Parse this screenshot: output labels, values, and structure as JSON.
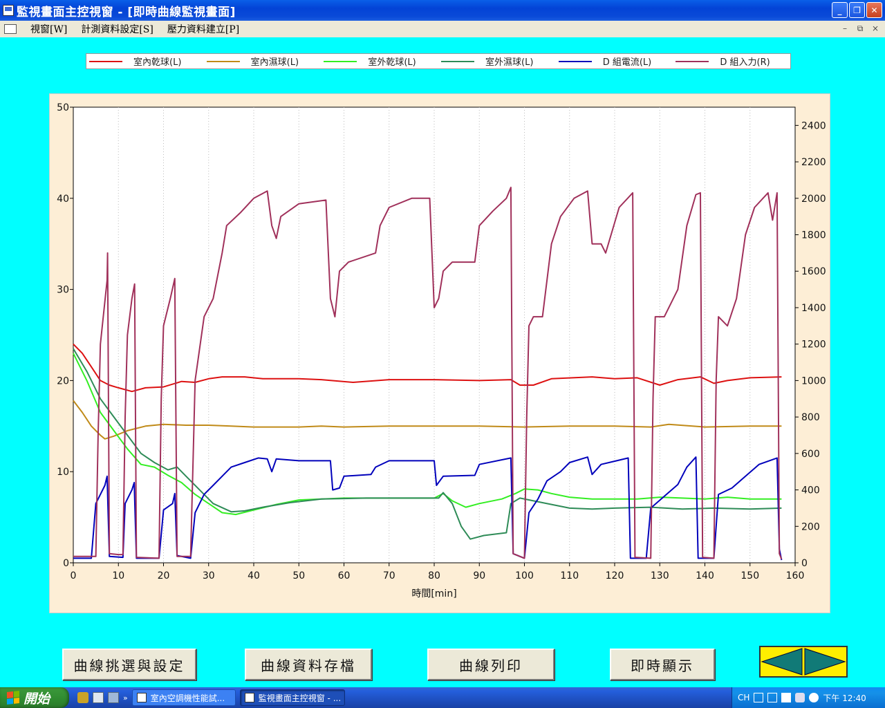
{
  "window": {
    "title": "監視畫面主控視窗 - [即時曲線監視畫面]",
    "buttons": [
      "minimize-icon",
      "restore-icon",
      "close-icon"
    ]
  },
  "menubar": {
    "items": [
      "視窗[W]",
      "計測資料設定[S]",
      "壓力資料建立[P]"
    ],
    "mdi_buttons": [
      "–",
      "⧉",
      "×"
    ]
  },
  "legend": {
    "items": [
      {
        "label": "室內乾球(L)",
        "color": "#dd1111"
      },
      {
        "label": "室內濕球(L)",
        "color": "#c08a18"
      },
      {
        "label": "室外乾球(L)",
        "color": "#33ee22"
      },
      {
        "label": "室外濕球(L)",
        "color": "#2e8b57"
      },
      {
        "label": "D 組電流(L)",
        "color": "#0000bb"
      },
      {
        "label": "D 組入力(R)",
        "color": "#a0305a"
      }
    ]
  },
  "chart_data": {
    "type": "line",
    "xlabel": "時間[min]",
    "xlim": [
      0,
      160
    ],
    "ylim": [
      0,
      50
    ],
    "y2lim": [
      0,
      2500
    ],
    "x_ticks": [
      0,
      10,
      20,
      30,
      40,
      50,
      60,
      70,
      80,
      90,
      100,
      110,
      120,
      130,
      140,
      150,
      160
    ],
    "y_ticks": [
      0,
      10,
      20,
      30,
      40,
      50
    ],
    "y2_ticks": [
      0,
      200,
      400,
      600,
      800,
      1000,
      1200,
      1400,
      1600,
      1800,
      2000,
      2200,
      2400
    ],
    "grid": true,
    "series": [
      {
        "name": "室內乾球(L)",
        "color": "#dd1111",
        "axis": "left",
        "points": [
          [
            0,
            24
          ],
          [
            2,
            23
          ],
          [
            4,
            21.5
          ],
          [
            6,
            20
          ],
          [
            8,
            19.5
          ],
          [
            10,
            19.2
          ],
          [
            13,
            18.8
          ],
          [
            16,
            19.2
          ],
          [
            20,
            19.3
          ],
          [
            24,
            19.9
          ],
          [
            27,
            19.8
          ],
          [
            30,
            20.2
          ],
          [
            33,
            20.4
          ],
          [
            38,
            20.4
          ],
          [
            42,
            20.2
          ],
          [
            50,
            20.2
          ],
          [
            55,
            20.1
          ],
          [
            62,
            19.8
          ],
          [
            70,
            20.1
          ],
          [
            80,
            20.1
          ],
          [
            90,
            20
          ],
          [
            97,
            20.1
          ],
          [
            99,
            19.5
          ],
          [
            102,
            19.5
          ],
          [
            106,
            20.2
          ],
          [
            115,
            20.4
          ],
          [
            120,
            20.2
          ],
          [
            125,
            20.3
          ],
          [
            130,
            19.5
          ],
          [
            134,
            20.1
          ],
          [
            139,
            20.4
          ],
          [
            142,
            19.7
          ],
          [
            145,
            20
          ],
          [
            150,
            20.3
          ],
          [
            157,
            20.4
          ]
        ]
      },
      {
        "name": "室內濕球(L)",
        "color": "#c08a18",
        "axis": "left",
        "points": [
          [
            0,
            17.8
          ],
          [
            2,
            16.5
          ],
          [
            4,
            15
          ],
          [
            6,
            14
          ],
          [
            7,
            13.6
          ],
          [
            9,
            13.9
          ],
          [
            12,
            14.5
          ],
          [
            16,
            15
          ],
          [
            20,
            15.2
          ],
          [
            25,
            15.1
          ],
          [
            30,
            15.1
          ],
          [
            35,
            15
          ],
          [
            40,
            14.9
          ],
          [
            50,
            14.9
          ],
          [
            55,
            15
          ],
          [
            60,
            14.9
          ],
          [
            70,
            15
          ],
          [
            80,
            15
          ],
          [
            90,
            15
          ],
          [
            100,
            14.9
          ],
          [
            110,
            15
          ],
          [
            120,
            15
          ],
          [
            128,
            14.9
          ],
          [
            132,
            15.2
          ],
          [
            140,
            14.9
          ],
          [
            150,
            15
          ],
          [
            157,
            15
          ]
        ]
      },
      {
        "name": "室外乾球(L)",
        "color": "#33ee22",
        "axis": "left",
        "points": [
          [
            0,
            23
          ],
          [
            3,
            20
          ],
          [
            6,
            16.5
          ],
          [
            9,
            14.5
          ],
          [
            12,
            12.5
          ],
          [
            15,
            10.8
          ],
          [
            18,
            10.5
          ],
          [
            21,
            9.6
          ],
          [
            24,
            8.8
          ],
          [
            27,
            7.5
          ],
          [
            30,
            6.5
          ],
          [
            33,
            5.5
          ],
          [
            36,
            5.3
          ],
          [
            40,
            5.8
          ],
          [
            45,
            6.4
          ],
          [
            50,
            6.9
          ],
          [
            55,
            7
          ],
          [
            60,
            7.1
          ],
          [
            70,
            7.1
          ],
          [
            80,
            7.1
          ],
          [
            82,
            7.6
          ],
          [
            84,
            6.8
          ],
          [
            87,
            6.1
          ],
          [
            90,
            6.5
          ],
          [
            95,
            7
          ],
          [
            98,
            7.6
          ],
          [
            100,
            8.1
          ],
          [
            103,
            8
          ],
          [
            106,
            7.6
          ],
          [
            110,
            7.2
          ],
          [
            115,
            7
          ],
          [
            120,
            7
          ],
          [
            125,
            7
          ],
          [
            130,
            7.2
          ],
          [
            135,
            7.1
          ],
          [
            140,
            7
          ],
          [
            145,
            7.2
          ],
          [
            150,
            7
          ],
          [
            157,
            7
          ]
        ]
      },
      {
        "name": "室外濕球(L)",
        "color": "#2e8b57",
        "axis": "left",
        "points": [
          [
            0,
            23.5
          ],
          [
            3,
            21
          ],
          [
            6,
            18
          ],
          [
            9,
            16
          ],
          [
            12,
            14
          ],
          [
            15,
            12
          ],
          [
            18,
            11
          ],
          [
            21,
            10.2
          ],
          [
            23,
            10.5
          ],
          [
            25,
            9.5
          ],
          [
            28,
            8
          ],
          [
            31,
            6.5
          ],
          [
            35,
            5.6
          ],
          [
            38,
            5.7
          ],
          [
            42,
            6.1
          ],
          [
            48,
            6.6
          ],
          [
            55,
            7
          ],
          [
            65,
            7.1
          ],
          [
            75,
            7.1
          ],
          [
            81,
            7.1
          ],
          [
            82,
            7.7
          ],
          [
            84,
            6.5
          ],
          [
            86,
            4
          ],
          [
            88,
            2.6
          ],
          [
            91,
            3
          ],
          [
            96,
            3.3
          ],
          [
            97,
            6.5
          ],
          [
            99,
            7.1
          ],
          [
            104,
            6.6
          ],
          [
            110,
            6
          ],
          [
            115,
            5.9
          ],
          [
            120,
            6
          ],
          [
            128,
            6.1
          ],
          [
            135,
            5.9
          ],
          [
            142,
            6
          ],
          [
            150,
            5.9
          ],
          [
            157,
            6
          ]
        ]
      },
      {
        "name": "D 組電流(L)",
        "color": "#0000bb",
        "axis": "left",
        "points": [
          [
            0,
            0.5
          ],
          [
            4,
            0.5
          ],
          [
            5,
            6.5
          ],
          [
            7,
            8.5
          ],
          [
            7.5,
            9.5
          ],
          [
            8,
            0.7
          ],
          [
            11,
            0.6
          ],
          [
            11.5,
            6.5
          ],
          [
            13,
            8
          ],
          [
            13.5,
            8.8
          ],
          [
            14,
            0.5
          ],
          [
            19,
            0.5
          ],
          [
            20,
            5.8
          ],
          [
            22,
            6.5
          ],
          [
            22.5,
            7.6
          ],
          [
            23,
            0.8
          ],
          [
            26,
            0.5
          ],
          [
            27,
            5.5
          ],
          [
            29,
            7.5
          ],
          [
            31,
            8.5
          ],
          [
            33,
            9.5
          ],
          [
            35,
            10.5
          ],
          [
            38,
            11
          ],
          [
            41,
            11.5
          ],
          [
            43,
            11.4
          ],
          [
            44,
            10
          ],
          [
            45,
            11.4
          ],
          [
            50,
            11.2
          ],
          [
            57,
            11.2
          ],
          [
            57.5,
            8
          ],
          [
            59,
            8.2
          ],
          [
            60,
            9.5
          ],
          [
            66,
            9.7
          ],
          [
            67,
            10.5
          ],
          [
            70,
            11.2
          ],
          [
            80,
            11.2
          ],
          [
            80.5,
            8.5
          ],
          [
            82,
            9.5
          ],
          [
            89,
            9.6
          ],
          [
            90,
            10.8
          ],
          [
            97,
            11.5
          ],
          [
            97.5,
            1
          ],
          [
            100,
            0.5
          ],
          [
            101,
            5.5
          ],
          [
            103,
            7
          ],
          [
            105,
            9
          ],
          [
            108,
            10
          ],
          [
            110,
            11
          ],
          [
            114,
            11.6
          ],
          [
            115,
            9.7
          ],
          [
            117,
            10.8
          ],
          [
            123,
            11.5
          ],
          [
            123.5,
            0.5
          ],
          [
            127,
            0.5
          ],
          [
            128,
            6
          ],
          [
            131,
            7.3
          ],
          [
            134,
            8.6
          ],
          [
            136,
            10.5
          ],
          [
            138,
            11.6
          ],
          [
            138.5,
            0.5
          ],
          [
            142,
            0.5
          ],
          [
            143,
            7.5
          ],
          [
            146,
            8.2
          ],
          [
            149,
            9.5
          ],
          [
            152,
            10.8
          ],
          [
            156,
            11.5
          ],
          [
            156.5,
            1.5
          ],
          [
            157,
            0.3
          ]
        ]
      },
      {
        "name": "D 組入力(R)",
        "color": "#a0305a",
        "axis": "right",
        "points": [
          [
            0,
            35
          ],
          [
            5,
            35
          ],
          [
            5.5,
            700
          ],
          [
            6,
            1200
          ],
          [
            7.5,
            1550
          ],
          [
            7.6,
            1700
          ],
          [
            8,
            50
          ],
          [
            10,
            45
          ],
          [
            11,
            45
          ],
          [
            11.5,
            800
          ],
          [
            12,
            1250
          ],
          [
            13,
            1450
          ],
          [
            13.6,
            1530
          ],
          [
            14,
            30
          ],
          [
            19,
            25
          ],
          [
            19.5,
            900
          ],
          [
            20,
            1300
          ],
          [
            21.5,
            1450
          ],
          [
            22.5,
            1560
          ],
          [
            23,
            35
          ],
          [
            26,
            35
          ],
          [
            27,
            1000
          ],
          [
            29,
            1350
          ],
          [
            31,
            1450
          ],
          [
            33,
            1700
          ],
          [
            34,
            1850
          ],
          [
            37,
            1920
          ],
          [
            40,
            2000
          ],
          [
            43,
            2040
          ],
          [
            44,
            1850
          ],
          [
            45,
            1780
          ],
          [
            46,
            1900
          ],
          [
            50,
            1970
          ],
          [
            56,
            1990
          ],
          [
            57,
            1450
          ],
          [
            58,
            1350
          ],
          [
            59,
            1600
          ],
          [
            61,
            1650
          ],
          [
            67,
            1700
          ],
          [
            68,
            1850
          ],
          [
            70,
            1950
          ],
          [
            75,
            2000
          ],
          [
            79,
            2000
          ],
          [
            80,
            1400
          ],
          [
            81,
            1450
          ],
          [
            82,
            1600
          ],
          [
            84,
            1650
          ],
          [
            89,
            1650
          ],
          [
            90,
            1850
          ],
          [
            93,
            1930
          ],
          [
            96,
            2000
          ],
          [
            97,
            2060
          ],
          [
            97.5,
            50
          ],
          [
            100,
            25
          ],
          [
            100.5,
            800
          ],
          [
            101,
            1300
          ],
          [
            102,
            1350
          ],
          [
            104,
            1350
          ],
          [
            106,
            1750
          ],
          [
            108,
            1900
          ],
          [
            111,
            2000
          ],
          [
            114,
            2040
          ],
          [
            115,
            1750
          ],
          [
            117,
            1750
          ],
          [
            118,
            1700
          ],
          [
            121,
            1950
          ],
          [
            124,
            2030
          ],
          [
            124.5,
            30
          ],
          [
            128,
            25
          ],
          [
            128.5,
            900
          ],
          [
            129,
            1350
          ],
          [
            131,
            1350
          ],
          [
            134,
            1500
          ],
          [
            136,
            1850
          ],
          [
            138,
            2020
          ],
          [
            139,
            2030
          ],
          [
            139.5,
            30
          ],
          [
            142,
            25
          ],
          [
            142.5,
            1000
          ],
          [
            143,
            1350
          ],
          [
            145,
            1300
          ],
          [
            147,
            1450
          ],
          [
            149,
            1800
          ],
          [
            151,
            1950
          ],
          [
            154,
            2030
          ],
          [
            155,
            1880
          ],
          [
            156,
            2030
          ],
          [
            156.5,
            50
          ],
          [
            157,
            20
          ]
        ]
      }
    ]
  },
  "buttons": {
    "curve_select": "曲線挑選與設定",
    "curve_save": "曲線資料存檔",
    "curve_print": "曲線列印",
    "realtime": "即時顯示"
  },
  "nav": {
    "prev_icon": "arrow-left-icon",
    "next_icon": "arrow-right-icon"
  },
  "taskbar": {
    "start_label": "開始",
    "tasks": [
      {
        "label": "室內空調機性能試..."
      },
      {
        "label": "監視畫面主控視窗 - ..."
      }
    ],
    "tray_lang": "CH",
    "clock": "下午 12:40"
  }
}
